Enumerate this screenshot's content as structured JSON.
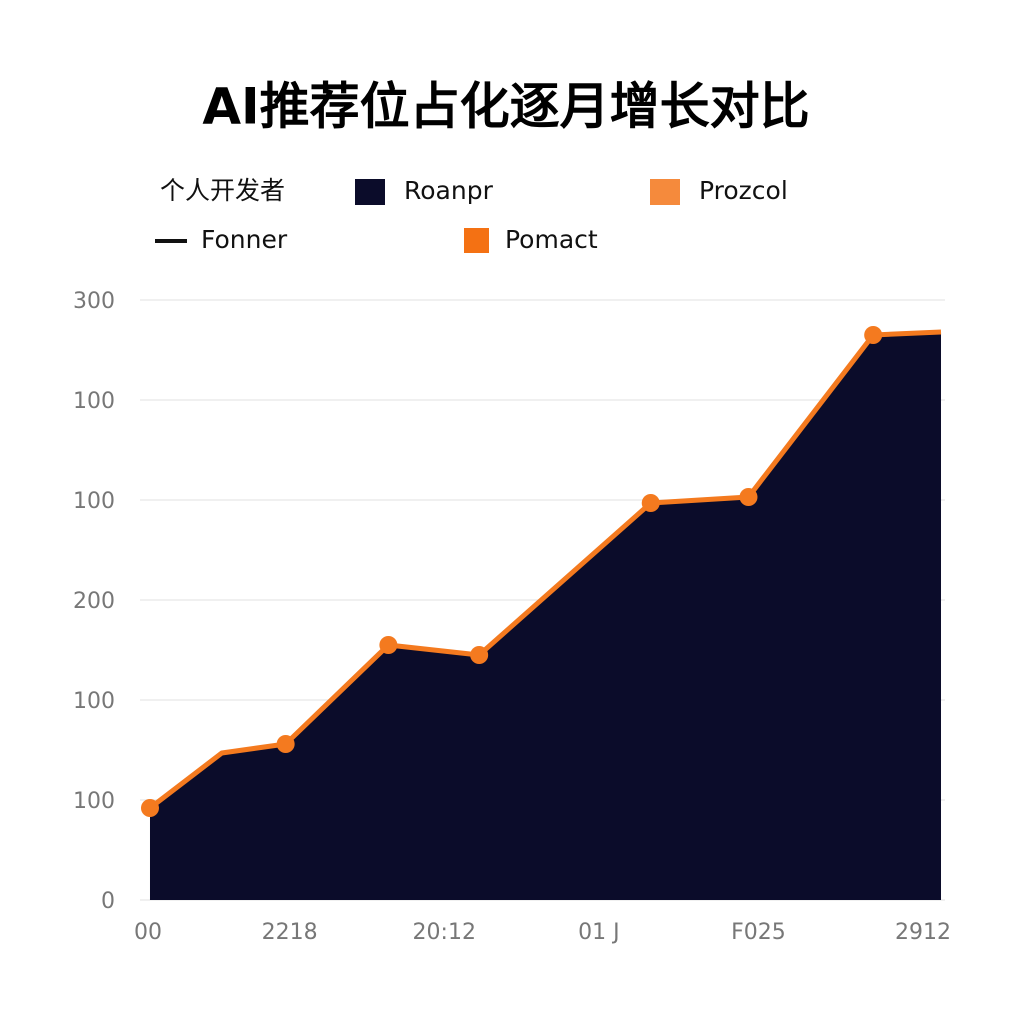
{
  "chart_data": {
    "type": "area",
    "title": "AI推荐位占化逐月增长对比",
    "legend": {
      "title": "个人开发者",
      "items": [
        {
          "name": "Roanpr",
          "color": "#0b0c2a",
          "shape": "square"
        },
        {
          "name": "Prozcol",
          "color": "#f58a3c",
          "shape": "square"
        },
        {
          "name": "Fonner",
          "color": "#111111",
          "shape": "line"
        },
        {
          "name": "Pomact",
          "color": "#f47113",
          "shape": "square"
        }
      ]
    },
    "x": [
      5,
      77,
      141,
      244,
      335,
      507,
      605,
      730,
      798
    ],
    "series": [
      {
        "fill": "#0b0c2a",
        "color": "#f47a1f",
        "values": [
          92,
          147,
          156,
          255,
          245,
          397,
          403,
          565,
          568
        ],
        "markers": [
          true,
          false,
          true,
          true,
          true,
          true,
          true,
          true,
          false
        ]
      }
    ],
    "xlim": [
      0,
      800
    ],
    "xticks": [
      {
        "value": 3,
        "label": "00"
      },
      {
        "value": 145,
        "label": "2218"
      },
      {
        "value": 300,
        "label": "20:12"
      },
      {
        "value": 455,
        "label": "01 J"
      },
      {
        "value": 615,
        "label": "F025"
      },
      {
        "value": 780,
        "label": "2912"
      }
    ],
    "ylim": [
      0,
      600
    ],
    "yticks": [
      0,
      100,
      {
        "value": 200,
        "label": "100"
      },
      {
        "value": 300,
        "label": "200"
      },
      {
        "value": 400,
        "label": "100"
      },
      {
        "value": 500,
        "label": "100"
      },
      {
        "value": 600,
        "label": "300"
      }
    ],
    "grid": true
  }
}
